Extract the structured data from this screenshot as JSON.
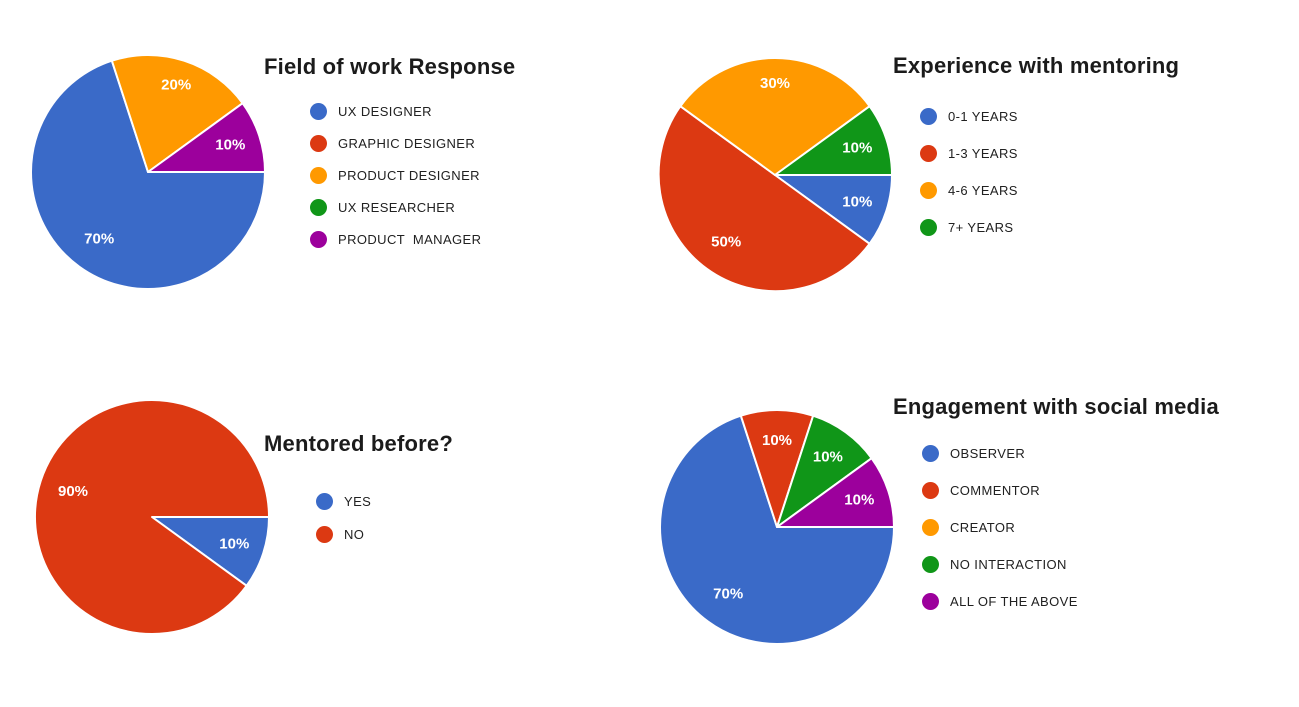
{
  "page": {
    "background": "#ffffff",
    "slice_separator_color": "#ffffff"
  },
  "chart_data": [
    {
      "type": "pie",
      "title": "Field of work Response",
      "categories": [
        "UX DESIGNER",
        "GRAPHIC DESIGNER",
        "PRODUCT DESIGNER",
        "UX RESEARCHER",
        "PRODUCT  MANAGER"
      ],
      "values": [
        70,
        0,
        20,
        0,
        10
      ],
      "colors": [
        "#3A6AC8",
        "#DC3912",
        "#FF9900",
        "#109618",
        "#9C009C"
      ],
      "slice_labels": [
        "70%",
        "",
        "20%",
        "",
        "10%"
      ],
      "label_color": "#ffffff",
      "start_angle_deg": 0,
      "direction": "clockwise",
      "legend_position": "right"
    },
    {
      "type": "pie",
      "title": "Experience with mentoring",
      "categories": [
        "0-1 YEARS",
        "1-3 YEARS",
        "4-6 YEARS",
        "7+ YEARS"
      ],
      "values": [
        10,
        50,
        30,
        10
      ],
      "colors": [
        "#3A6AC8",
        "#DC3912",
        "#FF9900",
        "#109618"
      ],
      "slice_labels": [
        "10%",
        "50%",
        "30%",
        "10%"
      ],
      "label_color": "#ffffff",
      "start_angle_deg": 0,
      "direction": "clockwise",
      "legend_position": "right"
    },
    {
      "type": "pie",
      "title": "Mentored before?",
      "categories": [
        "YES",
        "NO"
      ],
      "values": [
        10,
        90
      ],
      "colors": [
        "#3A6AC8",
        "#DC3912"
      ],
      "slice_labels": [
        "10%",
        "90%"
      ],
      "label_color": "#ffffff",
      "start_angle_deg": 0,
      "direction": "clockwise",
      "legend_position": "right"
    },
    {
      "type": "pie",
      "title": "Engagement with social media",
      "categories": [
        "OBSERVER",
        "COMMENTOR",
        "CREATOR",
        "NO INTERACTION",
        "ALL OF THE ABOVE"
      ],
      "values": [
        70,
        10,
        0,
        10,
        10
      ],
      "colors": [
        "#3A6AC8",
        "#DC3912",
        "#FF9900",
        "#109618",
        "#9C009C"
      ],
      "slice_labels": [
        "70%",
        "10%",
        "",
        "10%",
        "10%"
      ],
      "label_color": "#ffffff",
      "start_angle_deg": 0,
      "direction": "clockwise",
      "legend_position": "right"
    }
  ]
}
